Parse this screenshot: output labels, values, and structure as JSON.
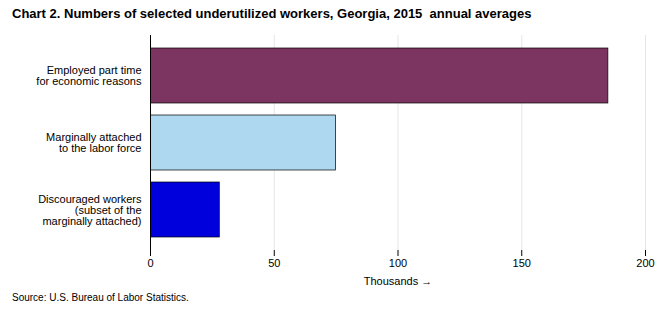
{
  "chart_data": {
    "type": "bar",
    "orientation": "horizontal",
    "title": "Chart 2. Numbers of selected underutilized workers, Georgia, 2015  annual averages",
    "categories": [
      "Discouraged workers\n(subset of the\nmarginally attached)",
      "Marginally attached\nto the labor force",
      "Employed part time\nfor economic reasons"
    ],
    "values": [
      28,
      75,
      185
    ],
    "colors": [
      "#0000dd",
      "#add8f0",
      "#7b3560"
    ],
    "xlabel": "Thousands",
    "xlim": [
      0,
      200
    ],
    "xticks": [
      0,
      50,
      100,
      150,
      200
    ],
    "grid": true,
    "source": "Source: U.S. Bureau of Labor Statistics."
  }
}
